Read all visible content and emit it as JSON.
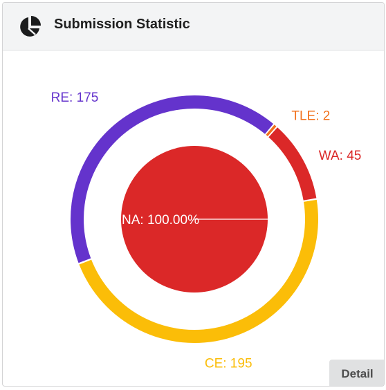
{
  "header": {
    "title": "Submission Statistic",
    "icon": "pie-chart-icon"
  },
  "detail_button": {
    "label": "Detail"
  },
  "colors": {
    "RE": "#6433cc",
    "TLE": "#f2711c",
    "WA": "#db2828",
    "CE": "#fbbd08",
    "NA": "#db2828"
  },
  "chart_data": [
    {
      "type": "pie",
      "ring": "outer",
      "categories": [
        "TLE",
        "WA",
        "CE",
        "RE"
      ],
      "values": [
        2,
        45,
        195,
        175
      ],
      "labels": [
        "TLE: 2",
        "WA: 45",
        "CE: 195",
        "RE: 175"
      ]
    },
    {
      "type": "pie",
      "ring": "inner",
      "categories": [
        "NA"
      ],
      "values": [
        100
      ],
      "labels": [
        "NA: 100.00%"
      ]
    }
  ]
}
